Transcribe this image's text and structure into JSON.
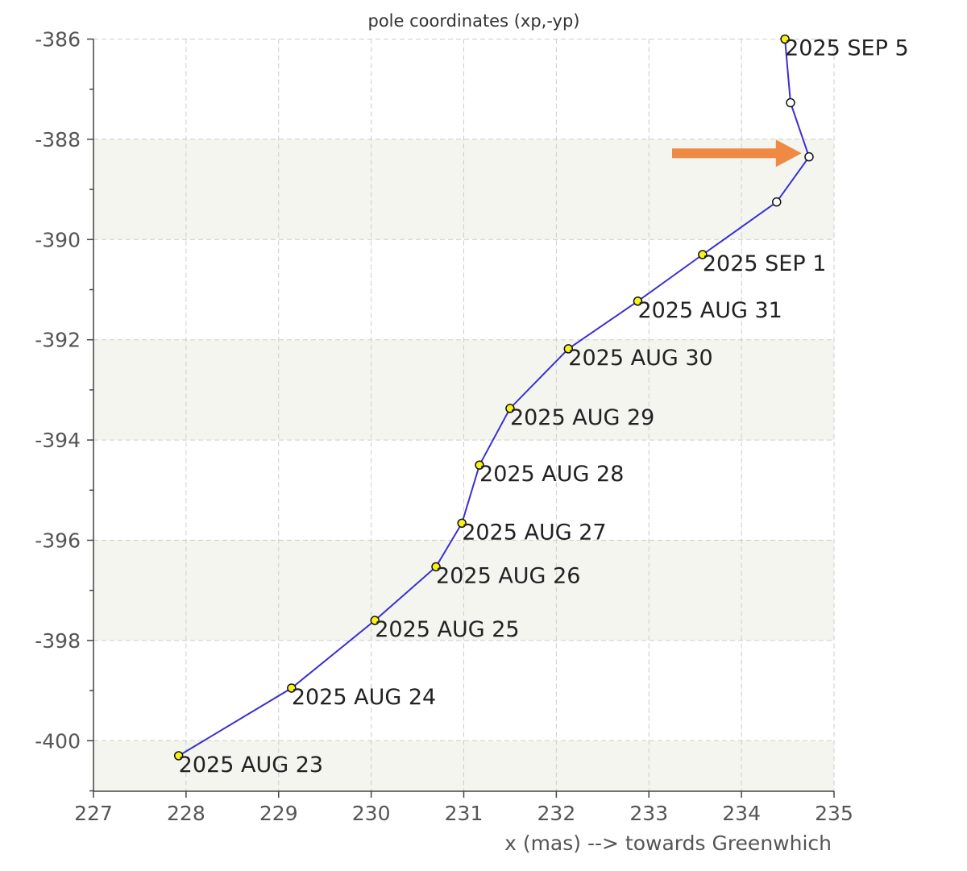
{
  "chart_data": {
    "type": "line",
    "title": "pole coordinates (xp,-yp)",
    "xlabel": "x (mas) --> towards Greenwhich",
    "ylabel": "",
    "xlim": [
      227,
      235
    ],
    "ylim": [
      -401,
      -386
    ],
    "xticks": [
      227,
      228,
      229,
      230,
      231,
      232,
      233,
      234,
      235
    ],
    "yticks": [
      -386,
      -388,
      -390,
      -392,
      -394,
      -396,
      -398,
      -400
    ],
    "grid": true,
    "series": [
      {
        "color": "#3a2fd0",
        "points": [
          {
            "x": 227.92,
            "y": -400.3,
            "label": "2025 AUG 23",
            "style": "observed"
          },
          {
            "x": 229.14,
            "y": -398.95,
            "label": "2025 AUG 24",
            "style": "observed"
          },
          {
            "x": 230.04,
            "y": -397.6,
            "label": "2025 AUG 25",
            "style": "observed"
          },
          {
            "x": 230.7,
            "y": -396.53,
            "label": "2025 AUG 26",
            "style": "observed"
          },
          {
            "x": 230.98,
            "y": -395.66,
            "label": "2025 AUG 27",
            "style": "observed"
          },
          {
            "x": 231.17,
            "y": -394.5,
            "label": "2025 AUG 28",
            "style": "observed"
          },
          {
            "x": 231.5,
            "y": -393.37,
            "label": "2025 AUG 29",
            "style": "observed"
          },
          {
            "x": 232.13,
            "y": -392.18,
            "label": "2025 AUG 30",
            "style": "observed"
          },
          {
            "x": 232.88,
            "y": -391.23,
            "label": "2025 AUG 31",
            "style": "observed"
          },
          {
            "x": 233.58,
            "y": -390.3,
            "label": "2025 SEP 1",
            "style": "observed"
          },
          {
            "x": 234.38,
            "y": -389.25,
            "label": "",
            "style": "predicted"
          },
          {
            "x": 234.73,
            "y": -388.35,
            "label": "",
            "style": "predicted"
          },
          {
            "x": 234.53,
            "y": -387.27,
            "label": "",
            "style": "predicted"
          },
          {
            "x": 234.47,
            "y": -386.0,
            "label": "2025 SEP 5",
            "style": "observed"
          }
        ]
      }
    ],
    "annotations": [
      {
        "type": "arrow",
        "color": "#ee8a44",
        "x_start": 233.25,
        "x_end": 234.65,
        "y": -388.28
      }
    ]
  }
}
